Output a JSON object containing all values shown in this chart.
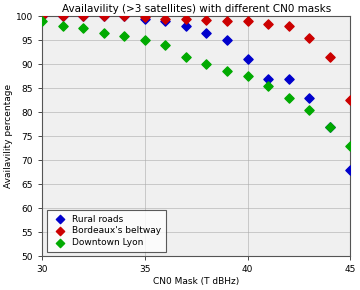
{
  "title": "Availavility (>3 satellites) with different CN0 masks",
  "xlabel": "CN0 Mask (T dBHz)",
  "ylabel": "Availavility percentage",
  "xlim": [
    30,
    45
  ],
  "ylim": [
    50,
    100
  ],
  "yticks": [
    50,
    55,
    60,
    65,
    70,
    75,
    80,
    85,
    90,
    95,
    100
  ],
  "xticks": [
    30,
    35,
    40,
    45
  ],
  "series": [
    {
      "label": "Rural roads",
      "color": "#0000cc",
      "x": [
        30,
        31,
        32,
        33,
        34,
        35,
        36,
        37,
        38,
        39,
        40,
        41,
        42,
        43,
        44,
        45
      ],
      "y": [
        100,
        100,
        100,
        100,
        100,
        99.5,
        99,
        98,
        96.5,
        95,
        91,
        87,
        87,
        83,
        77,
        68
      ]
    },
    {
      "label": "Bordeaux's beltway",
      "color": "#cc0000",
      "x": [
        30,
        31,
        32,
        33,
        34,
        35,
        36,
        37,
        38,
        39,
        40,
        41,
        42,
        43,
        44,
        45
      ],
      "y": [
        100,
        100,
        100,
        100,
        100,
        99.8,
        99.5,
        99.5,
        99.3,
        99,
        99,
        98.5,
        98,
        95.5,
        91.5,
        82.5
      ]
    },
    {
      "label": "Downtown Lyon",
      "color": "#00aa00",
      "x": [
        30,
        31,
        32,
        33,
        34,
        35,
        36,
        37,
        38,
        39,
        40,
        41,
        42,
        43,
        44,
        45
      ],
      "y": [
        99,
        98,
        97.5,
        96.5,
        96,
        95,
        94,
        91.5,
        90,
        88.5,
        87.5,
        85.5,
        83,
        80.5,
        77,
        73
      ]
    }
  ],
  "legend_loc": "lower left",
  "grid": true,
  "bg_color": "#f0f0f0",
  "title_fontsize": 7.5,
  "label_fontsize": 6.5,
  "tick_fontsize": 6.5,
  "legend_fontsize": 6.5,
  "marker_size": 22
}
